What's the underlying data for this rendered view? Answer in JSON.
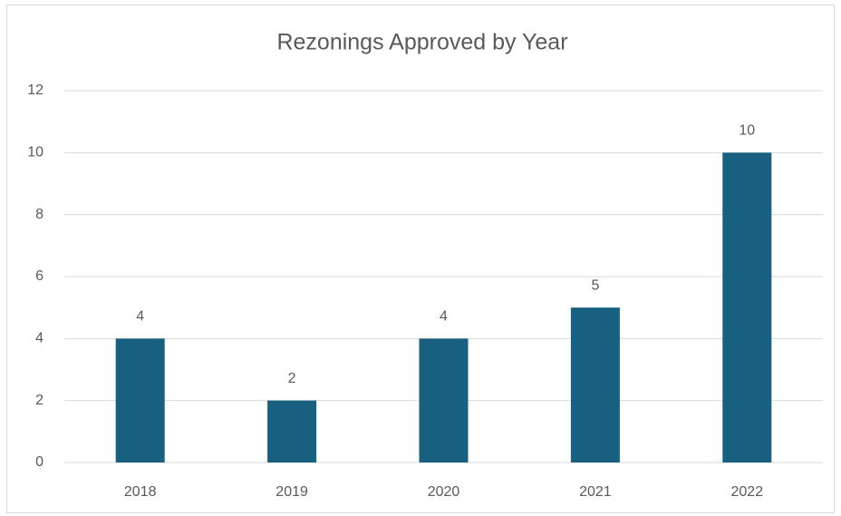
{
  "chart_data": {
    "type": "bar",
    "title": "Rezonings Approved by Year",
    "categories": [
      "2018",
      "2019",
      "2020",
      "2021",
      "2022"
    ],
    "values": [
      4,
      2,
      4,
      5,
      10
    ],
    "color": "#17607f",
    "ylim": [
      0,
      12
    ],
    "yticks": [
      0,
      2,
      4,
      6,
      8,
      10,
      12
    ],
    "grid": true,
    "data_labels": true
  }
}
